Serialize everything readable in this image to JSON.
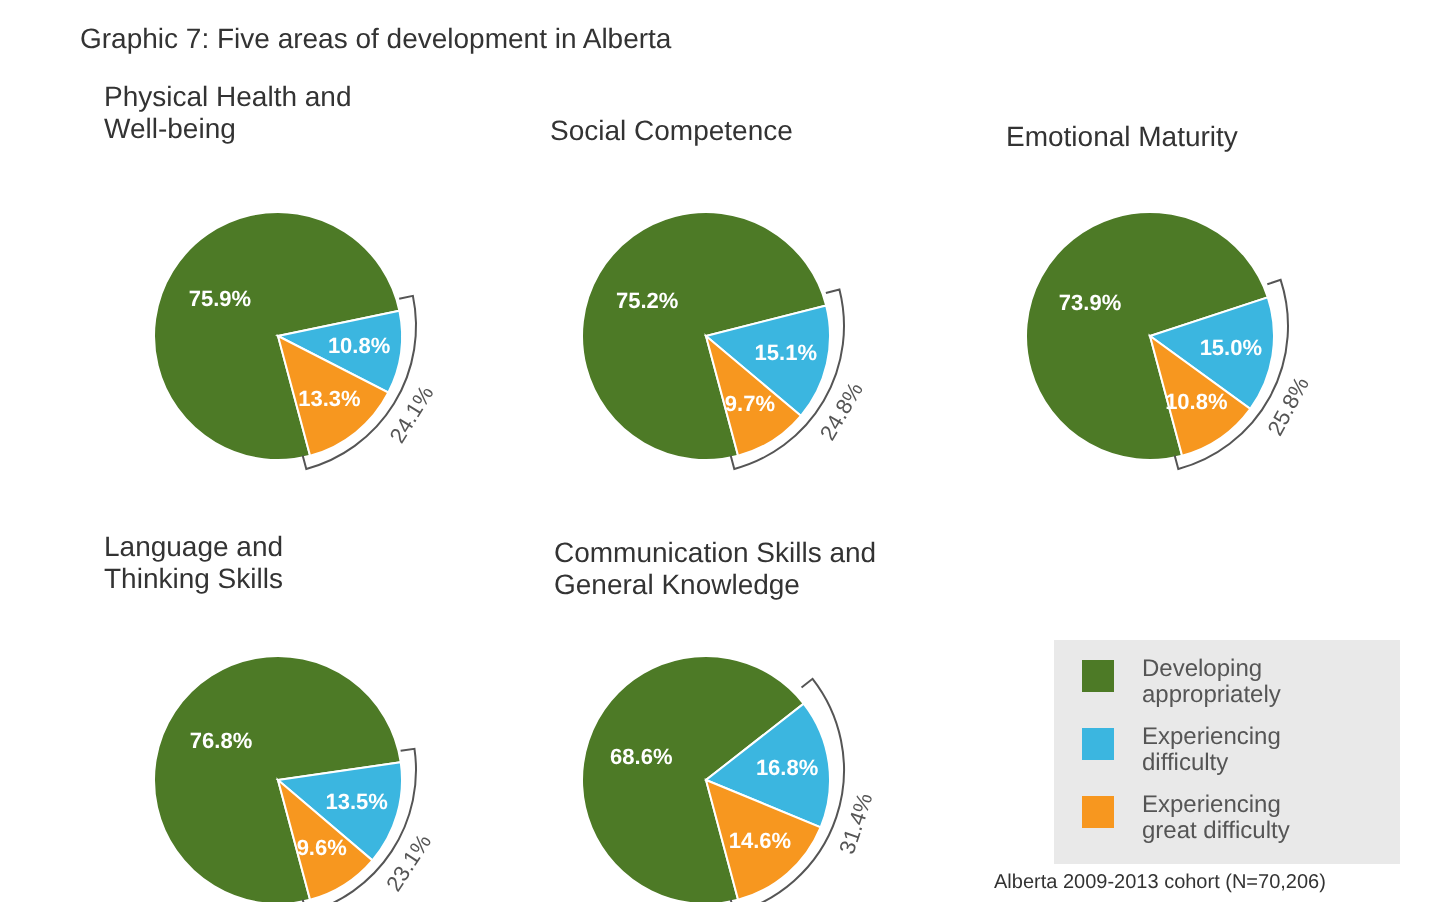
{
  "chart_data": [
    {
      "type": "other",
      "title": "Graphic 7: Five areas of development in Alberta",
      "annotations": [
        "Alberta 2009-2013 cohort (N=70,206)"
      ]
    },
    {
      "type": "pie",
      "title": "Physical Health and Well-being",
      "values": [
        75.9,
        10.8,
        13.3
      ],
      "colors": [
        "#4d7a26",
        "#3bb6e0",
        "#f7971f"
      ],
      "value_labels": [
        "75.9%",
        "10.8%",
        "13.3%"
      ],
      "annotations": [
        "24.1%"
      ]
    },
    {
      "type": "pie",
      "title": "Social Competence",
      "values": [
        75.2,
        15.1,
        9.7
      ],
      "colors": [
        "#4d7a26",
        "#3bb6e0",
        "#f7971f"
      ],
      "value_labels": [
        "75.2%",
        "15.1%",
        "9.7%"
      ],
      "annotations": [
        "24.8%"
      ]
    },
    {
      "type": "pie",
      "title": "Emotional Maturity",
      "values": [
        73.9,
        15.0,
        10.8
      ],
      "colors": [
        "#4d7a26",
        "#3bb6e0",
        "#f7971f"
      ],
      "value_labels": [
        "73.9%",
        "15.0%",
        "10.8%"
      ],
      "annotations": [
        "25.8%"
      ]
    },
    {
      "type": "pie",
      "title": "Language and Thinking Skills",
      "values": [
        76.8,
        13.5,
        9.6
      ],
      "colors": [
        "#4d7a26",
        "#3bb6e0",
        "#f7971f"
      ],
      "value_labels": [
        "76.8%",
        "13.5%",
        "9.6%"
      ],
      "annotations": [
        "23.1%"
      ]
    },
    {
      "type": "pie",
      "title": "Communication Skills and General Knowledge",
      "categories": [
        "Developing appropriately",
        "Experiencing difficulty",
        "Experiencing great difficulty"
      ],
      "values": [
        68.6,
        16.8,
        14.6
      ],
      "colors": [
        "#4d7a26",
        "#3bb6e0",
        "#f7971f"
      ],
      "value_labels": [
        "68.6%",
        "16.8%",
        "14.6%"
      ],
      "legend": "right",
      "annotations": [
        "31.4%"
      ]
    }
  ]
}
